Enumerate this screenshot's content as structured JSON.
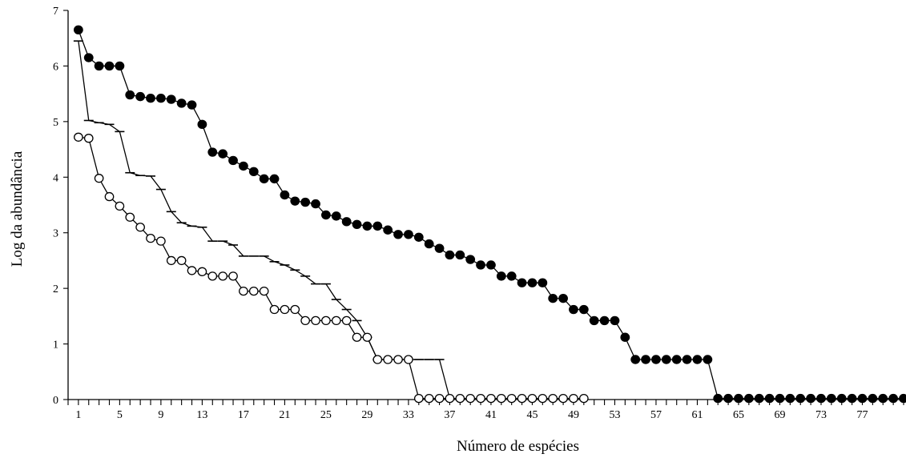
{
  "chart_data": {
    "type": "line",
    "title": "",
    "xlabel": "Número de espécies",
    "ylabel": "Log da abundância",
    "xlim": [
      0,
      81
    ],
    "ylim": [
      0,
      7
    ],
    "x_ticks_labeled": [
      "1",
      "5",
      "9",
      "13",
      "17",
      "21",
      "25",
      "29",
      "33",
      "37",
      "41",
      "45",
      "49",
      "53",
      "57",
      "61",
      "65",
      "69",
      "73",
      "77"
    ],
    "y_ticks": [
      "0",
      "1",
      "2",
      "3",
      "4",
      "5",
      "6",
      "7"
    ],
    "grid": false,
    "legend": "none",
    "series": [
      {
        "marker": "filled-circle",
        "x": [
          1,
          2,
          3,
          4,
          5,
          6,
          7,
          8,
          9,
          10,
          11,
          12,
          13,
          14,
          15,
          16,
          17,
          18,
          19,
          20,
          21,
          22,
          23,
          24,
          25,
          26,
          27,
          28,
          29,
          30,
          31,
          32,
          33,
          34,
          35,
          36,
          37,
          38,
          39,
          40,
          41,
          42,
          43,
          44,
          45,
          46,
          47,
          48,
          49,
          50,
          51,
          52,
          53,
          54,
          55,
          56,
          57,
          58,
          59,
          60,
          61,
          62,
          63,
          64,
          65,
          66,
          67,
          68,
          69,
          70,
          71,
          72,
          73,
          74,
          75,
          76,
          77,
          78,
          79,
          80,
          81
        ],
        "values": [
          6.65,
          6.15,
          6.0,
          6.0,
          6.0,
          5.48,
          5.45,
          5.42,
          5.42,
          5.4,
          5.33,
          5.3,
          4.95,
          4.45,
          4.42,
          4.3,
          4.2,
          4.1,
          3.97,
          3.97,
          3.68,
          3.57,
          3.55,
          3.52,
          3.32,
          3.3,
          3.2,
          3.15,
          3.12,
          3.12,
          3.05,
          2.97,
          2.97,
          2.92,
          2.8,
          2.72,
          2.6,
          2.6,
          2.52,
          2.42,
          2.42,
          2.22,
          2.22,
          2.1,
          2.1,
          2.1,
          1.82,
          1.82,
          1.62,
          1.62,
          1.42,
          1.42,
          1.42,
          1.12,
          0.72,
          0.72,
          0.72,
          0.72,
          0.72,
          0.72,
          0.72,
          0.72,
          0.02,
          0.02,
          0.02,
          0.02,
          0.02,
          0.02,
          0.02,
          0.02,
          0.02,
          0.02,
          0.02,
          0.02,
          0.02,
          0.02,
          0.02,
          0.02,
          0.02,
          0.02,
          0.02
        ]
      },
      {
        "marker": "dash",
        "x": [
          1,
          2,
          3,
          4,
          5,
          6,
          7,
          8,
          9,
          10,
          11,
          12,
          13,
          14,
          15,
          16,
          17,
          18,
          19,
          20,
          21,
          22,
          23,
          24,
          25,
          26,
          27,
          28,
          29,
          30,
          31,
          32,
          33,
          34,
          35,
          36,
          37
        ],
        "values": [
          6.45,
          5.02,
          4.98,
          4.95,
          4.82,
          4.08,
          4.03,
          4.02,
          3.78,
          3.38,
          3.18,
          3.12,
          3.1,
          2.85,
          2.85,
          2.78,
          2.58,
          2.58,
          2.58,
          2.48,
          2.42,
          2.33,
          2.22,
          2.08,
          2.08,
          1.8,
          1.62,
          1.42,
          1.12,
          0.72,
          0.72,
          0.72,
          0.72,
          0.72,
          0.72,
          0.72,
          0.02
        ]
      },
      {
        "marker": "open-circle",
        "x": [
          1,
          2,
          3,
          4,
          5,
          6,
          7,
          8,
          9,
          10,
          11,
          12,
          13,
          14,
          15,
          16,
          17,
          18,
          19,
          20,
          21,
          22,
          23,
          24,
          25,
          26,
          27,
          28,
          29,
          30,
          31,
          32,
          33,
          34,
          35,
          36,
          37,
          38,
          39,
          40,
          41,
          42,
          43,
          44,
          45,
          46,
          47,
          48,
          49,
          50
        ],
        "values": [
          4.72,
          4.7,
          3.98,
          3.65,
          3.48,
          3.28,
          3.1,
          2.9,
          2.85,
          2.5,
          2.5,
          2.32,
          2.3,
          2.22,
          2.22,
          2.22,
          1.95,
          1.95,
          1.95,
          1.62,
          1.62,
          1.62,
          1.42,
          1.42,
          1.42,
          1.42,
          1.42,
          1.12,
          1.12,
          0.72,
          0.72,
          0.72,
          0.72,
          0.02,
          0.02,
          0.02,
          0.02,
          0.02,
          0.02,
          0.02,
          0.02,
          0.02,
          0.02,
          0.02,
          0.02,
          0.02,
          0.02,
          0.02,
          0.02,
          0.02
        ]
      }
    ]
  }
}
